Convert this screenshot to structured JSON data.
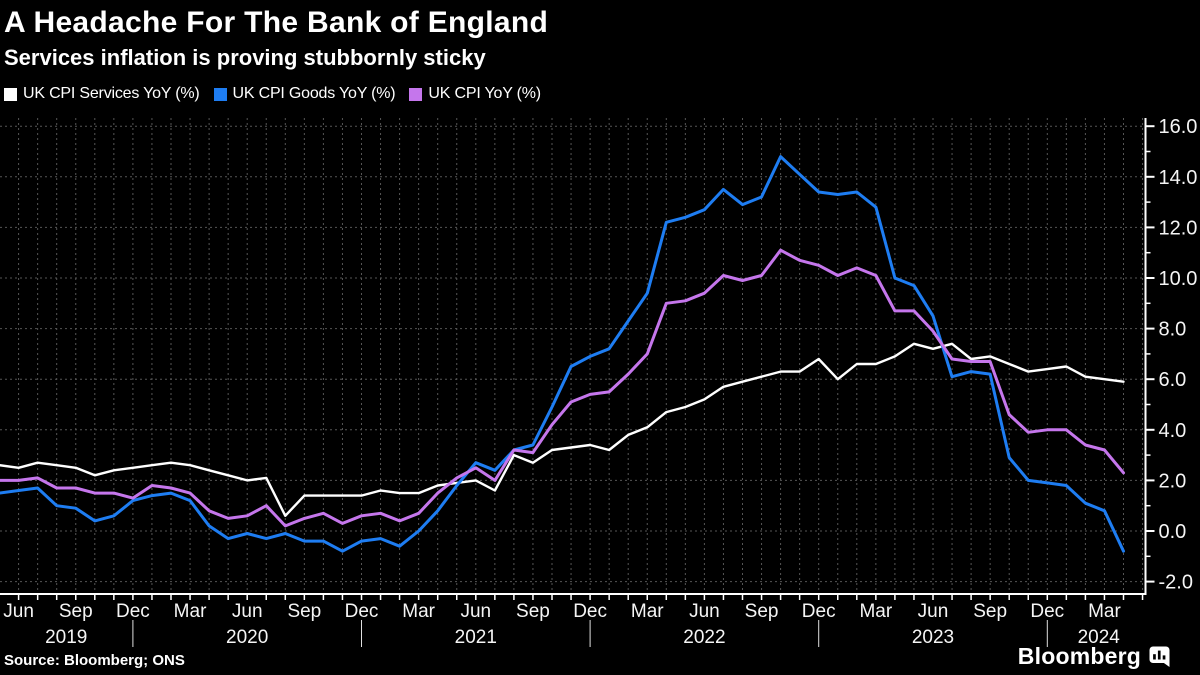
{
  "header": {
    "title": "A Headache For The Bank of England",
    "subtitle": "Services inflation is proving stubbornly sticky"
  },
  "legend": {
    "items": [
      {
        "name": "uk-cpi-services",
        "label": "UK CPI Services YoY (%)",
        "color": "#ffffff"
      },
      {
        "name": "uk-cpi-goods",
        "label": "UK CPI Goods YoY (%)",
        "color": "#1e7df2"
      },
      {
        "name": "uk-cpi",
        "label": "UK CPI YoY (%)",
        "color": "#c576ec"
      }
    ]
  },
  "chart_data": {
    "type": "line",
    "title": "A Headache For The Bank of England",
    "subtitle": "Services inflation is proving stubbornly sticky",
    "x_frequency": "monthly",
    "x_start": "2019-05",
    "x_end": "2024-04",
    "ylim": [
      -2.9,
      16.5
    ],
    "grid": true,
    "legend_position": "top",
    "series": [
      {
        "name": "UK CPI Services YoY (%)",
        "color": "#ffffff",
        "width": 2.4,
        "values": [
          2.6,
          2.5,
          2.7,
          2.6,
          2.5,
          2.2,
          2.4,
          2.5,
          2.6,
          2.7,
          2.6,
          2.4,
          2.2,
          2.0,
          2.1,
          0.6,
          1.4,
          1.4,
          1.4,
          1.4,
          1.6,
          1.5,
          1.5,
          1.8,
          1.9,
          2.0,
          1.6,
          3.0,
          2.7,
          3.2,
          3.3,
          3.4,
          3.2,
          3.8,
          4.1,
          4.7,
          4.9,
          5.2,
          5.7,
          5.9,
          6.1,
          6.3,
          6.3,
          6.8,
          6.0,
          6.6,
          6.6,
          6.9,
          7.4,
          7.2,
          7.4,
          6.8,
          6.9,
          6.6,
          6.3,
          6.4,
          6.5,
          6.1,
          6.0,
          5.9
        ]
      },
      {
        "name": "UK CPI Goods YoY (%)",
        "color": "#1e7df2",
        "width": 3,
        "values": [
          1.5,
          1.6,
          1.7,
          1.0,
          0.9,
          0.4,
          0.6,
          1.2,
          1.4,
          1.5,
          1.2,
          0.2,
          -0.3,
          -0.1,
          -0.3,
          -0.1,
          -0.4,
          -0.4,
          -0.8,
          -0.4,
          -0.3,
          -0.6,
          0.0,
          0.8,
          1.8,
          2.7,
          2.4,
          3.2,
          3.4,
          4.9,
          6.5,
          6.9,
          7.2,
          8.3,
          9.4,
          12.2,
          12.4,
          12.7,
          13.5,
          12.9,
          13.2,
          14.8,
          14.1,
          13.4,
          13.3,
          13.4,
          12.8,
          10.0,
          9.7,
          8.5,
          6.1,
          6.3,
          6.2,
          2.9,
          2.0,
          1.9,
          1.8,
          1.1,
          0.8,
          -0.8
        ]
      },
      {
        "name": "UK CPI YoY (%)",
        "color": "#c576ec",
        "width": 3,
        "values": [
          2.0,
          2.0,
          2.1,
          1.7,
          1.7,
          1.5,
          1.5,
          1.3,
          1.8,
          1.7,
          1.5,
          0.8,
          0.5,
          0.6,
          1.0,
          0.2,
          0.5,
          0.7,
          0.3,
          0.6,
          0.7,
          0.4,
          0.7,
          1.5,
          2.1,
          2.5,
          2.0,
          3.2,
          3.1,
          4.2,
          5.1,
          5.4,
          5.5,
          6.2,
          7.0,
          9.0,
          9.1,
          9.4,
          10.1,
          9.9,
          10.1,
          11.1,
          10.7,
          10.5,
          10.1,
          10.4,
          10.1,
          8.7,
          8.7,
          7.9,
          6.8,
          6.7,
          6.7,
          4.6,
          3.9,
          4.0,
          4.0,
          3.4,
          3.2,
          2.3
        ]
      }
    ],
    "x_tick_labels": [
      {
        "i": 1,
        "label": "Jun"
      },
      {
        "i": 4,
        "label": "Sep"
      },
      {
        "i": 7,
        "label": "Dec"
      },
      {
        "i": 10,
        "label": "Mar"
      },
      {
        "i": 13,
        "label": "Jun"
      },
      {
        "i": 16,
        "label": "Sep"
      },
      {
        "i": 19,
        "label": "Dec"
      },
      {
        "i": 22,
        "label": "Mar"
      },
      {
        "i": 25,
        "label": "Jun"
      },
      {
        "i": 28,
        "label": "Sep"
      },
      {
        "i": 31,
        "label": "Dec"
      },
      {
        "i": 34,
        "label": "Mar"
      },
      {
        "i": 37,
        "label": "Jun"
      },
      {
        "i": 40,
        "label": "Sep"
      },
      {
        "i": 43,
        "label": "Dec"
      },
      {
        "i": 46,
        "label": "Mar"
      },
      {
        "i": 49,
        "label": "Jun"
      },
      {
        "i": 52,
        "label": "Sep"
      },
      {
        "i": 55,
        "label": "Dec"
      },
      {
        "i": 58,
        "label": "Mar"
      }
    ],
    "year_labels": [
      {
        "i": 3.5,
        "label": "2019"
      },
      {
        "i": 13,
        "label": "2020"
      },
      {
        "i": 25,
        "label": "2021"
      },
      {
        "i": 37,
        "label": "2022"
      },
      {
        "i": 49,
        "label": "2023"
      },
      {
        "i": 57.7,
        "label": "2024"
      }
    ],
    "year_divider_i": [
      7,
      19,
      31,
      43,
      55
    ],
    "y_ticks": [
      {
        "v": 16,
        "label": "16.0"
      },
      {
        "v": 14,
        "label": "14.0"
      },
      {
        "v": 12,
        "label": "12.0"
      },
      {
        "v": 10,
        "label": "10.0"
      },
      {
        "v": 8,
        "label": "8.0"
      },
      {
        "v": 6,
        "label": "6.0"
      },
      {
        "v": 4,
        "label": "4.0"
      },
      {
        "v": 2,
        "label": "2.0"
      },
      {
        "v": 0,
        "label": "0.0"
      },
      {
        "v": -2,
        "label": "-2.0"
      }
    ],
    "y_minor_ticks": [
      15,
      13,
      11,
      9,
      7,
      5,
      3,
      1,
      -1
    ]
  },
  "footer": {
    "source": "Source: Bloomberg; ONS",
    "brand": "Bloomberg"
  },
  "colors": {
    "background": "#000000",
    "grid": "#565656",
    "axis": "#ffffff",
    "text": "#ffffff",
    "accent_blue": "#1e7df2",
    "accent_purple": "#c576ec"
  }
}
